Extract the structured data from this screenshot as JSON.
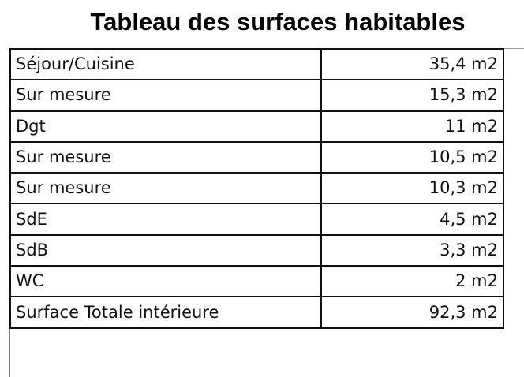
{
  "title": "Tableau des surfaces habitables",
  "rows": [
    {
      "room": "Séjour/Cuisine",
      "area": "35,4 m2"
    },
    {
      "room": "Sur mesure",
      "area": "15,3 m2"
    },
    {
      "room": "Dgt",
      "area": "11 m2"
    },
    {
      "room": "Sur mesure",
      "area": "10,5 m2"
    },
    {
      "room": "Sur mesure",
      "area": "10,3 m2"
    },
    {
      "room": "SdE",
      "area": "4,5 m2"
    },
    {
      "room": "SdB",
      "area": "3,3 m2"
    },
    {
      "room": "WC",
      "area": "2 m2"
    },
    {
      "room": "Surface Totale intérieure",
      "area": "92,3 m2"
    }
  ]
}
